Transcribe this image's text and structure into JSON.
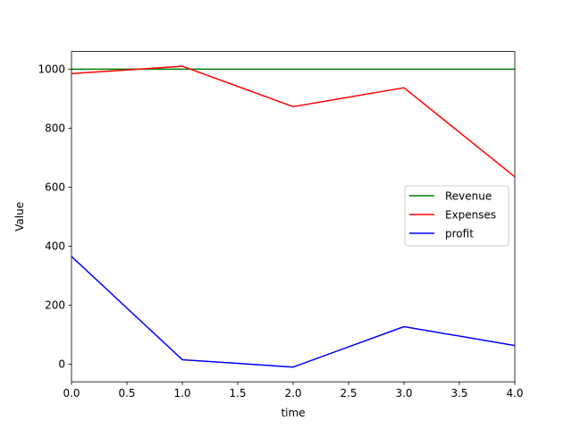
{
  "chart_data": {
    "type": "line",
    "title": "",
    "xlabel": "time",
    "ylabel": "Value",
    "xlim": [
      0,
      4
    ],
    "ylim": [
      -60,
      1060
    ],
    "xticks": [
      0,
      0.5,
      1,
      1.5,
      2,
      2.5,
      3,
      3.5,
      4
    ],
    "xtick_labels": [
      "0.0",
      "0.5",
      "1.0",
      "1.5",
      "2.0",
      "2.5",
      "3.0",
      "3.5",
      "4.0"
    ],
    "yticks": [
      0,
      200,
      400,
      600,
      800,
      1000
    ],
    "ytick_labels": [
      "0",
      "200",
      "400",
      "600",
      "800",
      "1000"
    ],
    "grid": false,
    "legend_position": "center-right",
    "x": [
      0,
      1,
      2,
      3,
      4
    ],
    "series": [
      {
        "name": "Revenue",
        "color": "#008000",
        "values": [
          1000,
          1000,
          1000,
          1000,
          1000
        ]
      },
      {
        "name": "Expenses",
        "color": "#ff0000",
        "values": [
          985,
          1010,
          873,
          937,
          635
        ]
      },
      {
        "name": "profit",
        "color": "#0000ff",
        "values": [
          365,
          15,
          -10,
          127,
          63
        ]
      }
    ]
  }
}
